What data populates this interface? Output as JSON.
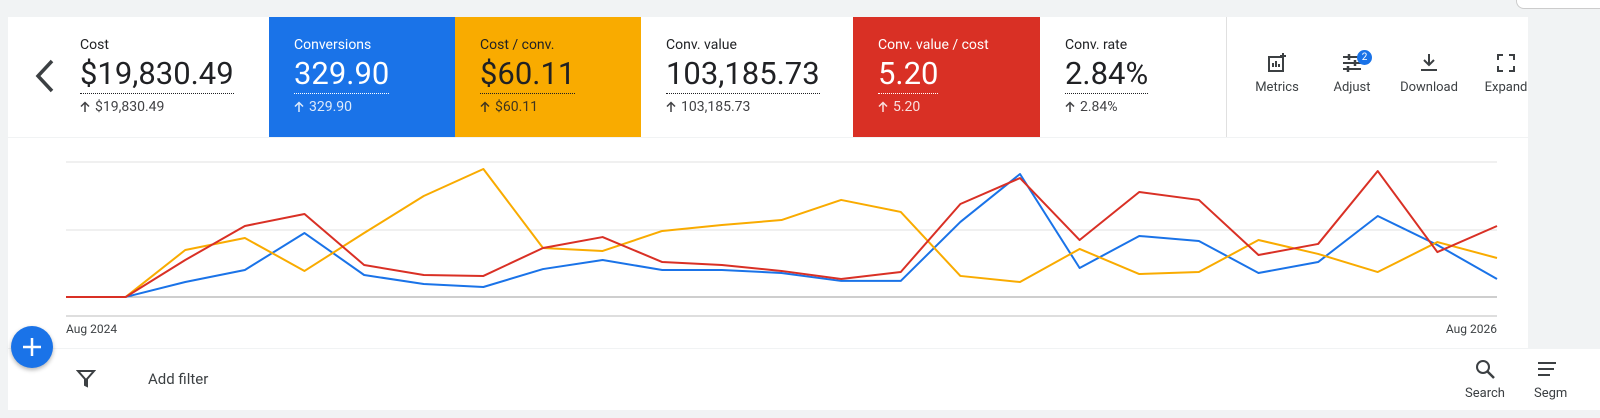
{
  "cards": [
    {
      "label": "Cost",
      "value": "$19,830.49",
      "delta": "$19,830.49",
      "bg": "#ffffff",
      "fg": "#202124"
    },
    {
      "label": "Conversions",
      "value": "329.90",
      "delta": "329.90",
      "bg": "#1a73e8",
      "fg": "#ffffff"
    },
    {
      "label": "Cost / conv.",
      "value": "$60.11",
      "delta": "$60.11",
      "bg": "#f9ab00",
      "fg": "#202124"
    },
    {
      "label": "Conv. value",
      "value": "103,185.73",
      "delta": "103,185.73",
      "bg": "#ffffff",
      "fg": "#202124"
    },
    {
      "label": "Conv. value / cost",
      "value": "5.20",
      "delta": "5.20",
      "bg": "#d93025",
      "fg": "#ffffff"
    },
    {
      "label": "Conv. rate",
      "value": "2.84%",
      "delta": "2.84%",
      "bg": "#ffffff",
      "fg": "#202124"
    }
  ],
  "tools": [
    "Metrics",
    "Adjust",
    "Download",
    "Expand"
  ],
  "adjust_badge": "2",
  "filter": {
    "label": "Add filter"
  },
  "bottom_tools": [
    "Search",
    "Segm"
  ],
  "chart_data": {
    "type": "line",
    "categories": [
      "Aug 2024",
      null,
      null,
      null,
      null,
      null,
      null,
      null,
      null,
      null,
      null,
      null,
      null,
      null,
      null,
      null,
      null,
      null,
      null,
      null,
      null,
      null,
      null,
      null,
      "Aug 2026"
    ],
    "ylim": [
      0,
      100
    ],
    "series": [
      {
        "color": "#1a73e8",
        "values": [
          0,
          0,
          11.1,
          20,
          47.4,
          16.3,
          9.6,
          7.4,
          20.7,
          27.4,
          20,
          20,
          17.8,
          11.9,
          11.9,
          55.6,
          91.1,
          21.5,
          45.2,
          41.5,
          17.8,
          25.9,
          60,
          38.5,
          13.3
        ]
      },
      {
        "color": "#f9ab00",
        "values": [
          0,
          0,
          34.8,
          43.7,
          19.3,
          47.4,
          74.8,
          94.8,
          36.3,
          34.1,
          48.9,
          53.3,
          57,
          71.9,
          63,
          15.6,
          11.1,
          35.6,
          17,
          18.5,
          42.2,
          31.9,
          18.5,
          40.7,
          28.9
        ]
      },
      {
        "color": "#d93025",
        "values": [
          0,
          0,
          27.4,
          52.6,
          61.5,
          23.7,
          16.3,
          15.6,
          36.3,
          44.4,
          25.9,
          23.7,
          19.3,
          13.3,
          18.5,
          68.9,
          88.1,
          42.2,
          77.8,
          71.9,
          31.1,
          39.3,
          93.3,
          33.3,
          52.6
        ]
      }
    ]
  }
}
